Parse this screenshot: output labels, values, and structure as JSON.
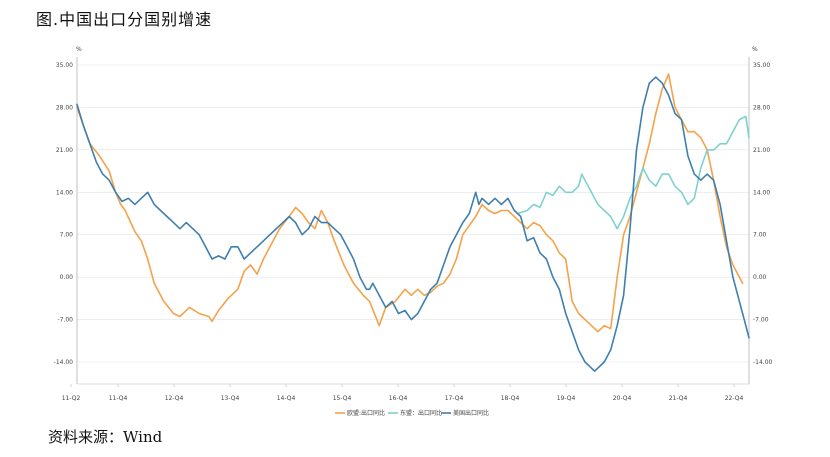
{
  "title": "图.中国出口分国别增速",
  "source": "资料来源：Wind",
  "chart_data": {
    "type": "line",
    "left_unit": "%",
    "right_unit": "%",
    "y_ticks": [
      "35.00",
      "28.00",
      "21.00",
      "14.00",
      "7.00",
      "0.00",
      "-7.00",
      "-14.00"
    ],
    "ylim": [
      -14,
      35
    ],
    "x_ticks": [
      "11-Q2",
      "11-Q4",
      "12-Q4",
      "13-Q4",
      "14-Q4",
      "15-Q4",
      "16-Q4",
      "17-Q4",
      "18-Q4",
      "19-Q4",
      "20-Q4",
      "21-Q4",
      "22-Q4"
    ],
    "grid": true,
    "legend_position": "bottom",
    "series": [
      {
        "name": "欧盟:出口同比",
        "color": "#f4a24c",
        "points": [
          [
            0,
            28
          ],
          [
            2,
            22
          ],
          [
            3.5,
            20
          ],
          [
            5,
            17.5
          ],
          [
            6,
            14
          ],
          [
            6.8,
            12
          ],
          [
            7.5,
            11
          ],
          [
            9,
            7.5
          ],
          [
            10,
            6
          ],
          [
            11,
            3
          ],
          [
            12,
            -1
          ],
          [
            13.5,
            -4
          ],
          [
            15,
            -6
          ],
          [
            16,
            -6.5
          ],
          [
            17.5,
            -5
          ],
          [
            19,
            -6
          ],
          [
            20.5,
            -6.5
          ],
          [
            21,
            -7.3
          ],
          [
            22,
            -5.5
          ],
          [
            23.5,
            -3.5
          ],
          [
            25,
            -2
          ],
          [
            26,
            1
          ],
          [
            27,
            2
          ],
          [
            28,
            0.5
          ],
          [
            29,
            3
          ],
          [
            30,
            5
          ],
          [
            31.5,
            8
          ],
          [
            33,
            10
          ],
          [
            34,
            11.5
          ],
          [
            35,
            10.5
          ],
          [
            36,
            9
          ],
          [
            37,
            8
          ],
          [
            38,
            11
          ],
          [
            39,
            9
          ],
          [
            40,
            6
          ],
          [
            41.5,
            2
          ],
          [
            43,
            -1
          ],
          [
            44.5,
            -3
          ],
          [
            45.5,
            -4
          ],
          [
            47,
            -8
          ],
          [
            48,
            -5
          ],
          [
            49.5,
            -4
          ],
          [
            51,
            -2
          ],
          [
            52,
            -3
          ],
          [
            53,
            -2
          ],
          [
            54,
            -3
          ],
          [
            55,
            -2.5
          ],
          [
            56,
            -1.5
          ],
          [
            57,
            -1
          ],
          [
            58,
            0.5
          ],
          [
            59,
            3
          ],
          [
            60,
            7
          ],
          [
            62,
            10
          ],
          [
            63,
            12
          ],
          [
            64,
            11
          ],
          [
            65,
            10.5
          ],
          [
            66,
            11
          ],
          [
            67,
            11
          ],
          [
            68,
            10
          ],
          [
            69,
            9
          ],
          [
            70,
            8
          ],
          [
            71,
            9
          ],
          [
            72,
            8.5
          ],
          [
            73,
            7
          ],
          [
            74,
            6
          ],
          [
            75,
            4
          ],
          [
            76,
            3
          ],
          [
            77,
            -4
          ],
          [
            78,
            -6
          ],
          [
            79,
            -7
          ],
          [
            80,
            -8
          ],
          [
            81,
            -9
          ],
          [
            82,
            -8
          ],
          [
            83,
            -8.5
          ],
          [
            84,
            0
          ],
          [
            85,
            7
          ],
          [
            86,
            10
          ],
          [
            87,
            14
          ],
          [
            88,
            18
          ],
          [
            89,
            22
          ],
          [
            90,
            27
          ],
          [
            91,
            31
          ],
          [
            92,
            33.5
          ],
          [
            93,
            28
          ],
          [
            94,
            26
          ],
          [
            95,
            24
          ],
          [
            96,
            24
          ],
          [
            97,
            23
          ],
          [
            98,
            21
          ],
          [
            99,
            16
          ],
          [
            100,
            10
          ],
          [
            101,
            5
          ],
          [
            102,
            2
          ],
          [
            103,
            0
          ],
          [
            103.5,
            -1
          ]
        ]
      },
      {
        "name": "东盟：出口同比",
        "color": "#7fd1cf",
        "points": [
          [
            68.5,
            10.5
          ],
          [
            70,
            11
          ],
          [
            71,
            12
          ],
          [
            72,
            11.5
          ],
          [
            73,
            14
          ],
          [
            74,
            13.5
          ],
          [
            75,
            15
          ],
          [
            76,
            14
          ],
          [
            77,
            14
          ],
          [
            78,
            15
          ],
          [
            78.5,
            17
          ],
          [
            79,
            16
          ],
          [
            80,
            14
          ],
          [
            81,
            12
          ],
          [
            82,
            11
          ],
          [
            83,
            10
          ],
          [
            84,
            8
          ],
          [
            85,
            10
          ],
          [
            86,
            13
          ],
          [
            87,
            15
          ],
          [
            88,
            18
          ],
          [
            89,
            16
          ],
          [
            90,
            15
          ],
          [
            91,
            17
          ],
          [
            92,
            17
          ],
          [
            93,
            15
          ],
          [
            94,
            14
          ],
          [
            95,
            12
          ],
          [
            96,
            13
          ],
          [
            97,
            18
          ],
          [
            98,
            21
          ],
          [
            99,
            21
          ],
          [
            100,
            22
          ],
          [
            101,
            22
          ],
          [
            102,
            24
          ],
          [
            103,
            26
          ],
          [
            104,
            26.5
          ],
          [
            104.5,
            23
          ]
        ]
      },
      {
        "name": "美国出口同比",
        "color": "#3f7fae",
        "points": [
          [
            0,
            28.5
          ],
          [
            1,
            25
          ],
          [
            2,
            22
          ],
          [
            3,
            19
          ],
          [
            4,
            17
          ],
          [
            5,
            16
          ],
          [
            6,
            14
          ],
          [
            7,
            12.5
          ],
          [
            8,
            13
          ],
          [
            9,
            12
          ],
          [
            10,
            13
          ],
          [
            11,
            14
          ],
          [
            12,
            12
          ],
          [
            13,
            11
          ],
          [
            14,
            10
          ],
          [
            15,
            9
          ],
          [
            16,
            8
          ],
          [
            17,
            9
          ],
          [
            18,
            8
          ],
          [
            19,
            7
          ],
          [
            20,
            5
          ],
          [
            21,
            3
          ],
          [
            22,
            3.5
          ],
          [
            23,
            3
          ],
          [
            24,
            5
          ],
          [
            25,
            5
          ],
          [
            26,
            3
          ],
          [
            27,
            4
          ],
          [
            28,
            5
          ],
          [
            29,
            6
          ],
          [
            30,
            7
          ],
          [
            31,
            8
          ],
          [
            32,
            9
          ],
          [
            33,
            10
          ],
          [
            34,
            9
          ],
          [
            35,
            7
          ],
          [
            36,
            8
          ],
          [
            37,
            10
          ],
          [
            38,
            9
          ],
          [
            39,
            9
          ],
          [
            40,
            8
          ],
          [
            41,
            7
          ],
          [
            42,
            5
          ],
          [
            43,
            3
          ],
          [
            44,
            0
          ],
          [
            45,
            -2
          ],
          [
            45.5,
            -2
          ],
          [
            46,
            -1
          ],
          [
            47,
            -3
          ],
          [
            48,
            -5
          ],
          [
            49,
            -4
          ],
          [
            50,
            -6
          ],
          [
            51,
            -5.5
          ],
          [
            52,
            -7
          ],
          [
            53,
            -6
          ],
          [
            54,
            -4
          ],
          [
            55,
            -2
          ],
          [
            56,
            -1
          ],
          [
            57,
            2
          ],
          [
            58,
            5
          ],
          [
            59,
            7
          ],
          [
            60,
            9
          ],
          [
            61,
            10.5
          ],
          [
            62,
            14
          ],
          [
            62.5,
            12
          ],
          [
            63,
            13
          ],
          [
            64,
            12
          ],
          [
            65,
            13
          ],
          [
            66,
            12
          ],
          [
            67,
            13
          ],
          [
            68,
            11
          ],
          [
            69,
            10
          ],
          [
            70,
            6
          ],
          [
            71,
            6.5
          ],
          [
            72,
            4
          ],
          [
            73,
            3
          ],
          [
            74,
            0
          ],
          [
            75,
            -2
          ],
          [
            76,
            -6
          ],
          [
            77,
            -9
          ],
          [
            78,
            -12
          ],
          [
            79,
            -14
          ],
          [
            80,
            -15
          ],
          [
            80.5,
            -15.5
          ],
          [
            81,
            -15
          ],
          [
            82,
            -14
          ],
          [
            83,
            -12
          ],
          [
            84,
            -8
          ],
          [
            85,
            -3
          ],
          [
            86,
            8
          ],
          [
            87,
            21
          ],
          [
            88,
            28
          ],
          [
            89,
            32
          ],
          [
            90,
            33
          ],
          [
            91,
            32
          ],
          [
            92,
            30
          ],
          [
            93,
            27
          ],
          [
            94,
            26
          ],
          [
            95,
            20
          ],
          [
            96,
            17
          ],
          [
            97,
            16
          ],
          [
            98,
            17
          ],
          [
            99,
            16
          ],
          [
            100,
            12
          ],
          [
            101,
            6
          ],
          [
            102,
            0
          ],
          [
            103,
            -4
          ],
          [
            104,
            -8
          ],
          [
            104.5,
            -10
          ]
        ]
      }
    ]
  }
}
